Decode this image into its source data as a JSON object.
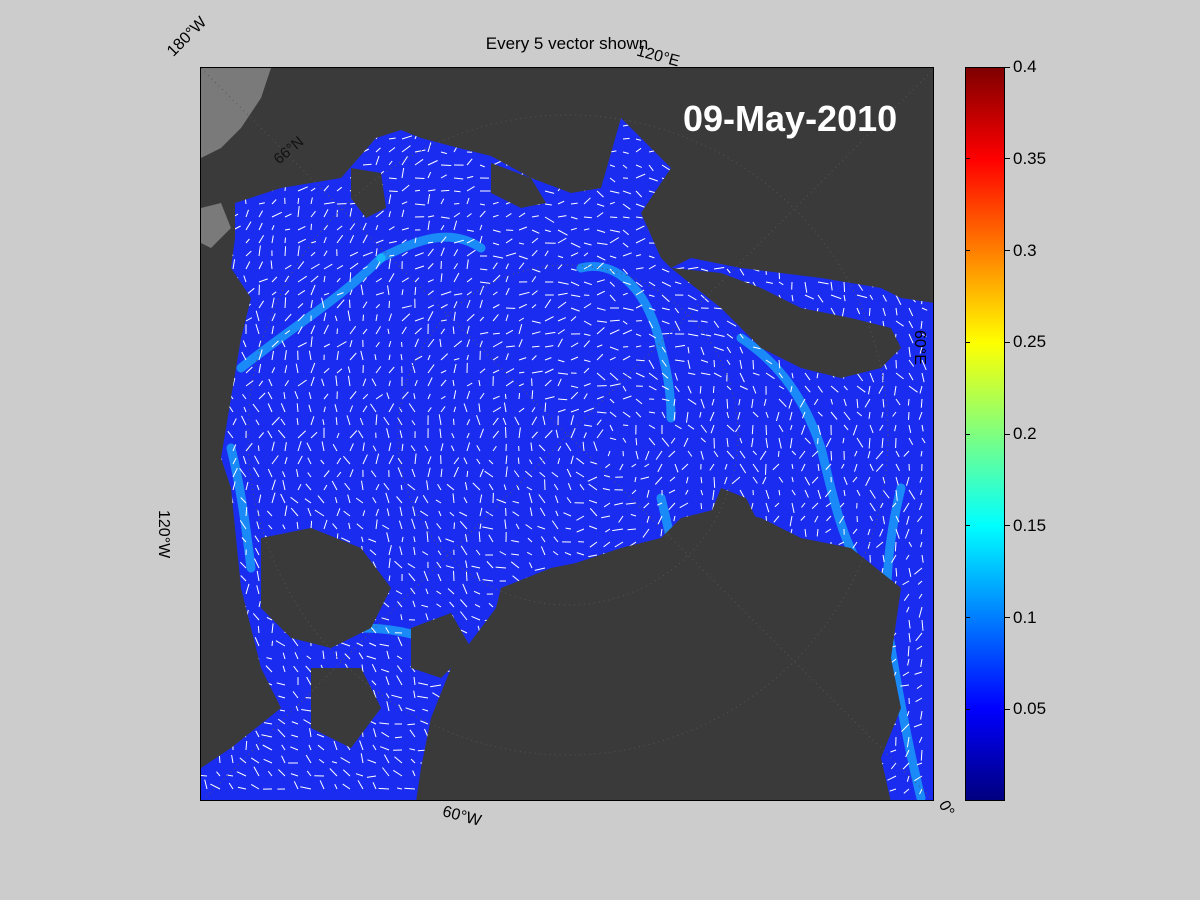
{
  "title": "Every 5 vector shown",
  "date": "09-May-2010",
  "longitude_labels": {
    "w180": "180°W",
    "e120": "120°E",
    "e60": "60°E",
    "w120": "120°W",
    "w60": "60°W",
    "zero": "0°"
  },
  "latitude_label": "66°N",
  "colorbar": {
    "min": 0,
    "max": 0.4,
    "colormap": "jet",
    "ticks": [
      0.05,
      0.1,
      0.15,
      0.2,
      0.25,
      0.3,
      0.35,
      0.4
    ],
    "tick_labels": [
      "0.05",
      "0.1",
      "0.15",
      "0.2",
      "0.25",
      "0.3",
      "0.35",
      "0.4"
    ]
  },
  "colors": {
    "background": "#cccccc",
    "land": "#3a3a3a",
    "land_light": "#7a7a7a",
    "ocean_low": "#1a2cf0",
    "ocean_high": "#19d8ff",
    "vectors": "#ffffff"
  }
}
